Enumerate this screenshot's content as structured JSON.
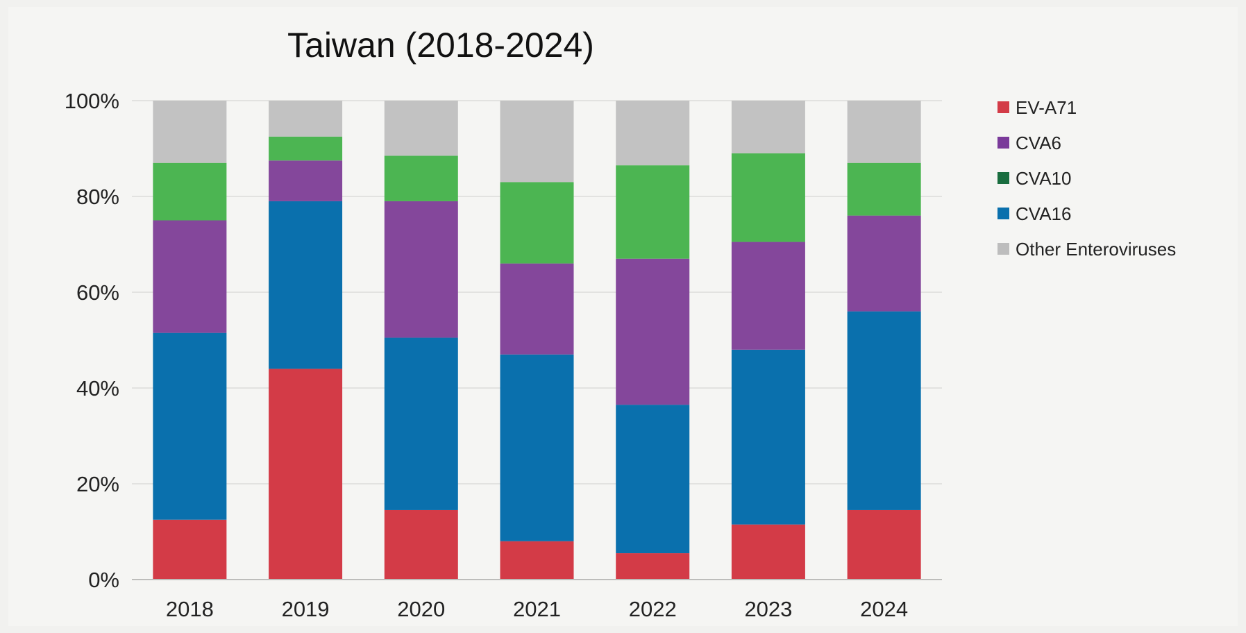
{
  "chart_data": {
    "type": "bar",
    "stacked": true,
    "title": "Taiwan (2018-2024)",
    "xlabel": "",
    "ylabel": "",
    "categories": [
      "2018",
      "2019",
      "2020",
      "2021",
      "2022",
      "2023",
      "2024"
    ],
    "ylim": [
      0,
      100
    ],
    "yticks": [
      "0%",
      "20%",
      "40%",
      "60%",
      "80%",
      "100%"
    ],
    "grid": true,
    "legend_position": "right",
    "series": [
      {
        "name": "EV-A71",
        "color": "#d33b47",
        "values": [
          12.5,
          44,
          14.5,
          8,
          5.5,
          11.5,
          14.5
        ]
      },
      {
        "name": "CVA16",
        "color": "#0a70ad",
        "values": [
          39,
          35,
          36,
          39,
          31,
          36.5,
          41.5
        ]
      },
      {
        "name": "CVA6",
        "color": "#84479b",
        "values": [
          23.5,
          8.5,
          28.5,
          19,
          30.5,
          22.5,
          20
        ]
      },
      {
        "name": "CVA10",
        "color": "#4cb552",
        "values": [
          12,
          5,
          9.5,
          17,
          19.5,
          18.5,
          11
        ]
      },
      {
        "name": "Other Enteroviruses",
        "color": "#c2c2c2",
        "values": [
          13,
          7.5,
          11.5,
          17,
          13.5,
          11,
          13
        ]
      }
    ],
    "legend": [
      {
        "name": "EV-A71",
        "color": "#d33b47"
      },
      {
        "name": "CVA6",
        "color": "#7a3a9a"
      },
      {
        "name": "CVA10",
        "color": "#196d3f"
      },
      {
        "name": "CVA16",
        "color": "#0a70ad"
      },
      {
        "name": "Other Enteroviruses",
        "color": "#bdbdbd"
      }
    ]
  }
}
